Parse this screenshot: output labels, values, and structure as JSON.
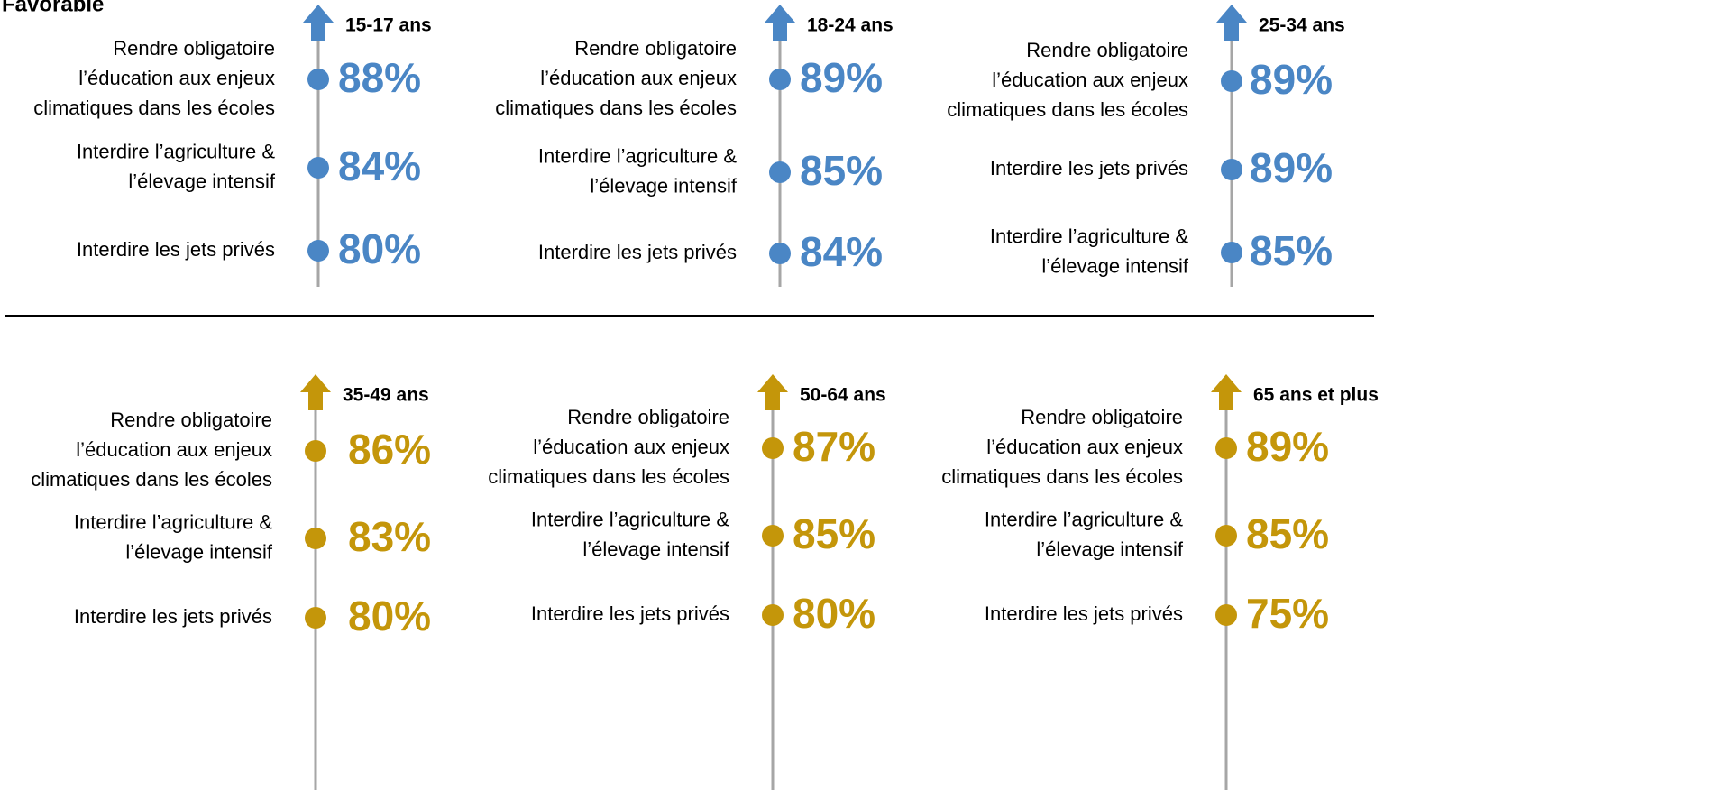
{
  "title": "Favorable",
  "panels": [
    {
      "group": "15-17 ans",
      "color": "#4a86c5",
      "items": [
        {
          "label": [
            "Rendre obligatoire",
            "l’éducation aux enjeux",
            "climatiques dans les écoles"
          ],
          "value": "88%"
        },
        {
          "label": [
            "Interdire l’agriculture &",
            "l’élevage intensif"
          ],
          "value": "84%"
        },
        {
          "label": [
            "Interdire les jets privés"
          ],
          "value": "80%"
        }
      ]
    },
    {
      "group": "18-24 ans",
      "color": "#4a86c5",
      "items": [
        {
          "label": [
            "Rendre obligatoire",
            "l’éducation aux enjeux",
            "climatiques dans les écoles"
          ],
          "value": "89%"
        },
        {
          "label": [
            "Interdire l’agriculture &",
            "l’élevage intensif"
          ],
          "value": "85%"
        },
        {
          "label": [
            "Interdire les jets privés"
          ],
          "value": "84%"
        }
      ]
    },
    {
      "group": "25-34 ans",
      "color": "#4a86c5",
      "items": [
        {
          "label": [
            "Rendre obligatoire",
            "l’éducation aux enjeux",
            "climatiques dans les écoles"
          ],
          "value": "89%"
        },
        {
          "label": [
            "Interdire les jets privés"
          ],
          "value": "89%"
        },
        {
          "label": [
            "Interdire l’agriculture &",
            "l’élevage intensif"
          ],
          "value": "85%"
        }
      ]
    },
    {
      "group": "35-49 ans",
      "color": "#c4960a",
      "items": [
        {
          "label": [
            "Rendre obligatoire",
            "l’éducation aux enjeux",
            "climatiques dans les écoles"
          ],
          "value": "86%"
        },
        {
          "label": [
            "Interdire l’agriculture &",
            "l’élevage intensif"
          ],
          "value": "83%"
        },
        {
          "label": [
            "Interdire les jets privés"
          ],
          "value": "80%"
        }
      ]
    },
    {
      "group": "50-64 ans",
      "color": "#c4960a",
      "items": [
        {
          "label": [
            "Rendre obligatoire",
            "l’éducation aux enjeux",
            "climatiques dans les écoles"
          ],
          "value": "87%"
        },
        {
          "label": [
            "Interdire l’agriculture &",
            "l’élevage intensif"
          ],
          "value": "85%"
        },
        {
          "label": [
            "Interdire les jets privés"
          ],
          "value": "80%"
        }
      ]
    },
    {
      "group": "65 ans et plus",
      "color": "#c4960a",
      "items": [
        {
          "label": [
            "Rendre obligatoire",
            "l’éducation aux enjeux",
            "climatiques dans les écoles"
          ],
          "value": "89%"
        },
        {
          "label": [
            "Interdire l’agriculture &",
            "l’élevage intensif"
          ],
          "value": "85%"
        },
        {
          "label": [
            "Interdire les jets privés"
          ],
          "value": "75%"
        }
      ]
    }
  ]
}
